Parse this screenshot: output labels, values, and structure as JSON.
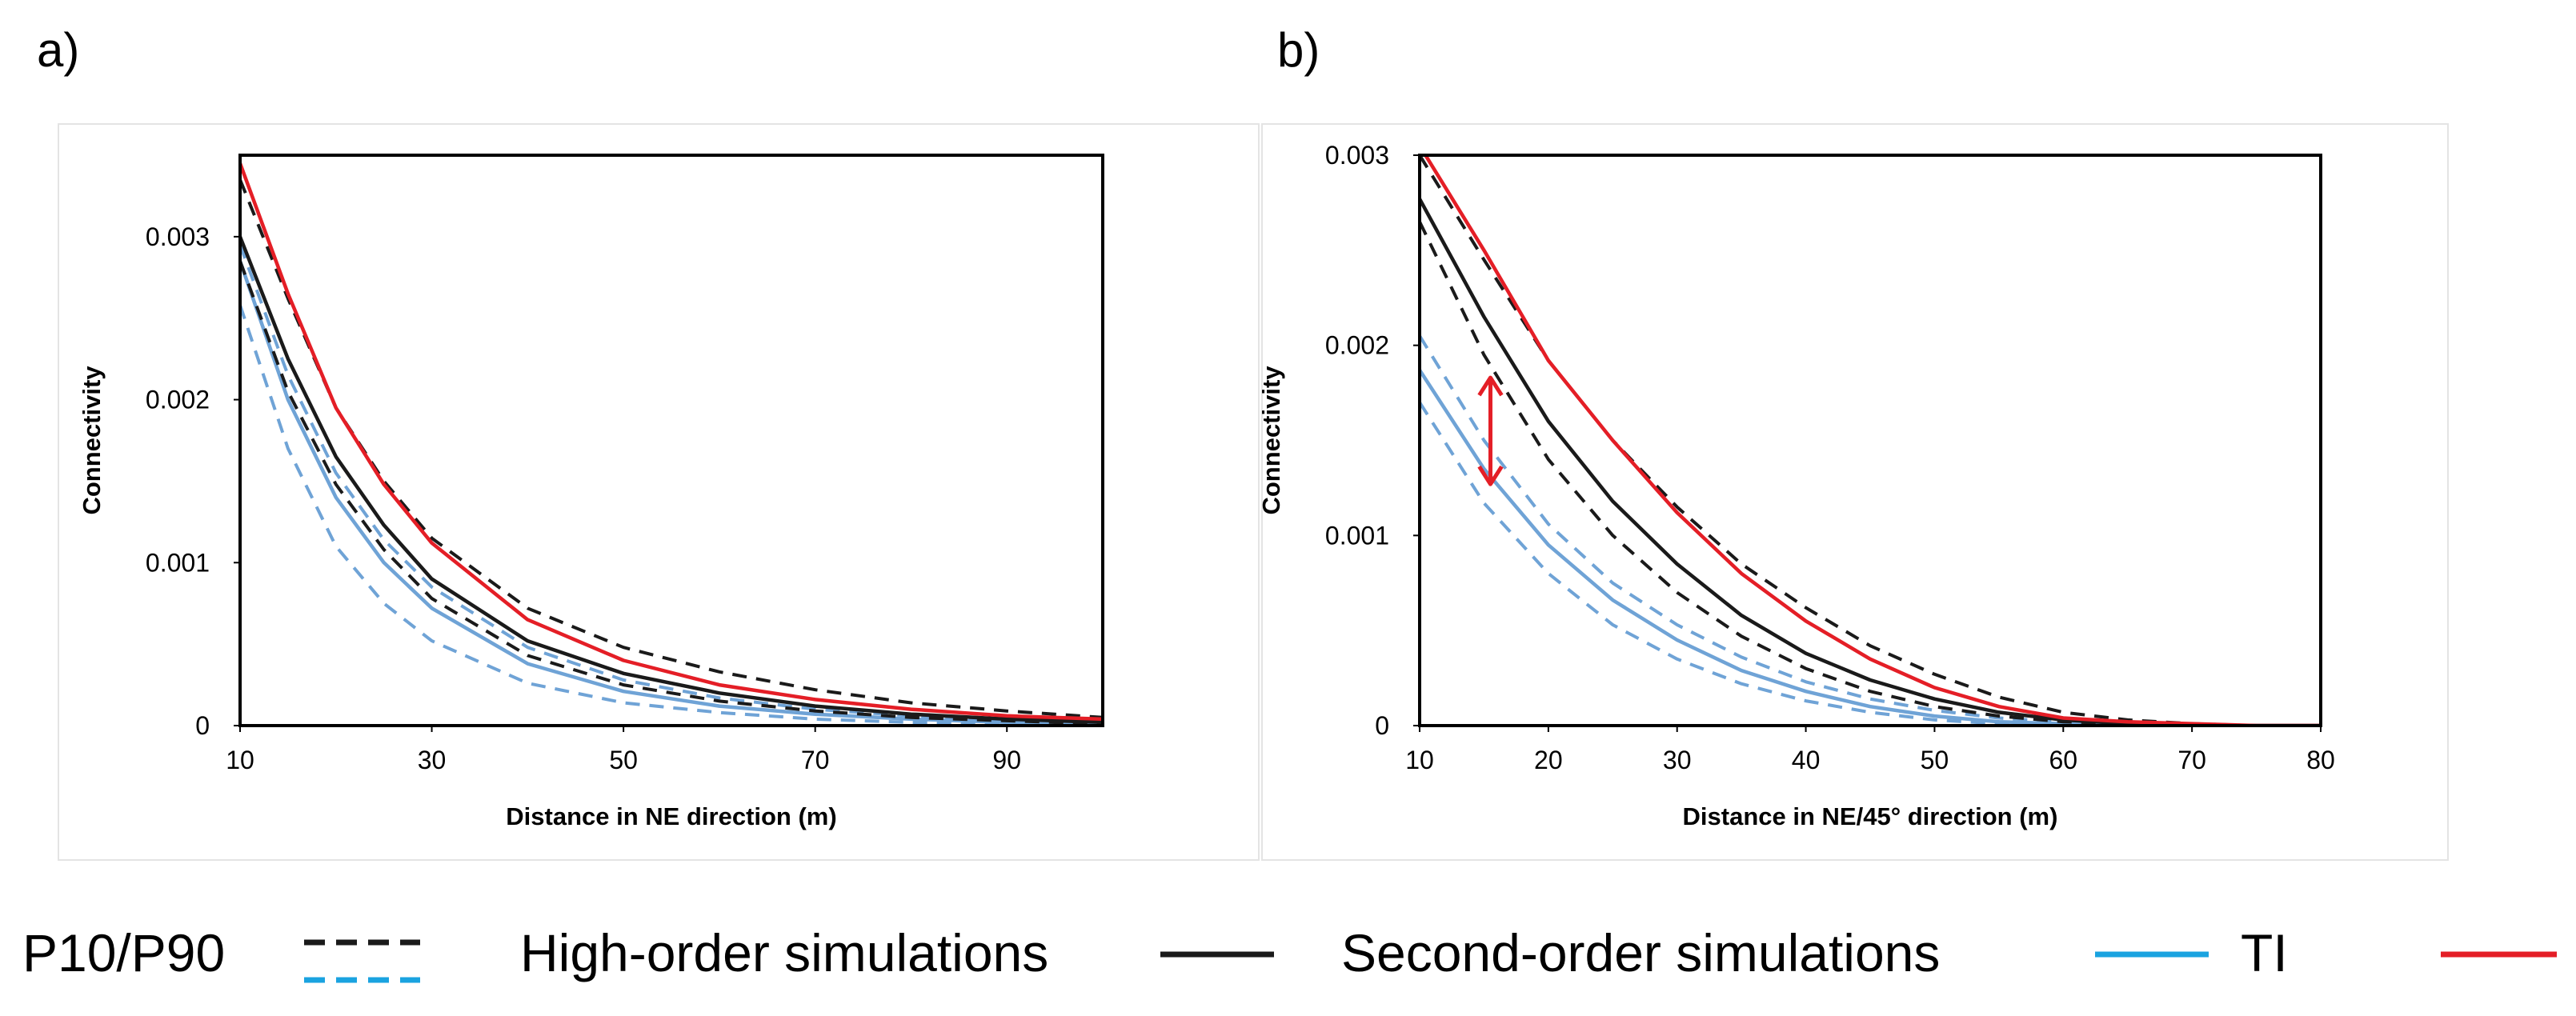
{
  "panels": {
    "a": {
      "label": "a)"
    },
    "b": {
      "label": "b)"
    }
  },
  "legend": {
    "p10_p90": "P10/P90",
    "high_order": "High-order simulations",
    "second_order": "Second-order simulations",
    "ti": "TI"
  },
  "colors": {
    "ti": "#e41e26",
    "high_order": "#1a1a1a",
    "second_order": "#6fa3d6",
    "second_order_legend": "#1aa3e0",
    "arrow": "#e41e26"
  },
  "chart_data": [
    {
      "type": "line",
      "panel": "a",
      "title": "",
      "xlabel": "Distance in NE direction (m)",
      "ylabel": "Connectivity",
      "xlim": [
        10,
        100
      ],
      "ylim": [
        0,
        0.0035
      ],
      "xticks": [
        10,
        30,
        50,
        70,
        90
      ],
      "xtick_labels": [
        "10",
        "30",
        "50",
        "70",
        "90"
      ],
      "yticks": [
        0,
        0.001,
        0.002,
        0.003
      ],
      "ytick_labels": [
        "0",
        "0.001",
        "0.002",
        "0.003"
      ],
      "grid": false,
      "series": [
        {
          "name": "TI",
          "style": "solid",
          "color_key": "ti",
          "x": [
            10,
            15,
            20,
            25,
            30,
            40,
            50,
            60,
            70,
            80,
            90,
            100
          ],
          "y": [
            0.00345,
            0.00265,
            0.00195,
            0.00148,
            0.00112,
            0.00065,
            0.0004,
            0.00025,
            0.00016,
            0.0001,
            6e-05,
            4e-05
          ]
        },
        {
          "name": "High-order simulations",
          "style": "solid",
          "color_key": "high_order",
          "x": [
            10,
            15,
            20,
            25,
            30,
            40,
            50,
            60,
            70,
            80,
            90,
            100
          ],
          "y": [
            0.003,
            0.00225,
            0.00165,
            0.00123,
            0.0009,
            0.00052,
            0.00032,
            0.0002,
            0.00012,
            7e-05,
            4e-05,
            2e-05
          ]
        },
        {
          "name": "High-order P90",
          "style": "dashed",
          "color_key": "high_order",
          "x": [
            10,
            15,
            20,
            25,
            30,
            40,
            50,
            60,
            70,
            80,
            90,
            100
          ],
          "y": [
            0.00335,
            0.00262,
            0.00195,
            0.0015,
            0.00115,
            0.00072,
            0.00048,
            0.00033,
            0.00022,
            0.00014,
            9e-05,
            5e-05
          ]
        },
        {
          "name": "High-order P10",
          "style": "dashed",
          "color_key": "high_order",
          "x": [
            10,
            15,
            20,
            25,
            30,
            40,
            50,
            60,
            70,
            80,
            90,
            100
          ],
          "y": [
            0.00285,
            0.00205,
            0.00148,
            0.00108,
            0.00078,
            0.00043,
            0.00025,
            0.00015,
            9e-05,
            5e-05,
            3e-05,
            1e-05
          ]
        },
        {
          "name": "Second-order simulations",
          "style": "solid",
          "color_key": "second_order",
          "x": [
            10,
            15,
            20,
            25,
            30,
            40,
            50,
            60,
            70,
            80,
            90,
            100
          ],
          "y": [
            0.00285,
            0.002,
            0.0014,
            0.001,
            0.00072,
            0.00038,
            0.00021,
            0.00012,
            7e-05,
            4e-05,
            2e-05,
            1e-05
          ]
        },
        {
          "name": "Second-order P90",
          "style": "dashed",
          "color_key": "second_order",
          "x": [
            10,
            15,
            20,
            25,
            30,
            40,
            50,
            60,
            70,
            80,
            90,
            100
          ],
          "y": [
            0.00295,
            0.00215,
            0.00155,
            0.00114,
            0.00085,
            0.00048,
            0.00028,
            0.00017,
            0.0001,
            6e-05,
            3e-05,
            2e-05
          ]
        },
        {
          "name": "Second-order P10",
          "style": "dashed",
          "color_key": "second_order",
          "x": [
            10,
            15,
            20,
            25,
            30,
            40,
            50,
            60,
            70,
            80,
            90,
            100
          ],
          "y": [
            0.00258,
            0.0017,
            0.0011,
            0.00075,
            0.00052,
            0.00026,
            0.00014,
            8e-05,
            4e-05,
            2e-05,
            1e-05,
            0.0
          ]
        }
      ]
    },
    {
      "type": "line",
      "panel": "b",
      "title": "",
      "xlabel": "Distance in NE/45° direction (m)",
      "ylabel": "Connectivity",
      "xlim": [
        10,
        80
      ],
      "ylim": [
        0,
        0.003
      ],
      "xticks": [
        10,
        20,
        30,
        40,
        50,
        60,
        70,
        80
      ],
      "xtick_labels": [
        "10",
        "20",
        "30",
        "40",
        "50",
        "60",
        "70",
        "80"
      ],
      "yticks": [
        0,
        0.001,
        0.002,
        0.003
      ],
      "ytick_labels": [
        "0",
        "0.001",
        "0.002",
        "0.003"
      ],
      "grid": false,
      "annotation": {
        "type": "double-arrow",
        "x": 15.5,
        "y_from": 0.00183,
        "y_to": 0.00127
      },
      "series": [
        {
          "name": "TI",
          "style": "solid",
          "color_key": "ti",
          "x": [
            10,
            15,
            20,
            25,
            30,
            35,
            40,
            45,
            50,
            55,
            60,
            65,
            70,
            75,
            80
          ],
          "y": [
            0.00305,
            0.0025,
            0.00192,
            0.0015,
            0.00112,
            0.0008,
            0.00055,
            0.00035,
            0.0002,
            0.0001,
            4e-05,
            2e-05,
            1e-05,
            0.0,
            0.0
          ]
        },
        {
          "name": "High-order simulations",
          "style": "solid",
          "color_key": "high_order",
          "x": [
            10,
            15,
            20,
            25,
            30,
            35,
            40,
            45,
            50,
            55,
            60,
            65,
            70,
            75,
            80
          ],
          "y": [
            0.00277,
            0.00215,
            0.0016,
            0.00118,
            0.00085,
            0.00058,
            0.00038,
            0.00024,
            0.00014,
            7e-05,
            3e-05,
            1e-05,
            0.0,
            0.0,
            0.0
          ]
        },
        {
          "name": "High-order P90",
          "style": "dashed",
          "color_key": "high_order",
          "x": [
            10,
            15,
            20,
            25,
            30,
            35,
            40,
            45,
            50,
            55,
            60,
            65,
            70,
            75,
            80
          ],
          "y": [
            0.003,
            0.00245,
            0.00192,
            0.0015,
            0.00115,
            0.00085,
            0.00062,
            0.00042,
            0.00027,
            0.00015,
            7e-05,
            3e-05,
            1e-05,
            0.0,
            0.0
          ]
        },
        {
          "name": "High-order P10",
          "style": "dashed",
          "color_key": "high_order",
          "x": [
            10,
            15,
            20,
            25,
            30,
            35,
            40,
            45,
            50,
            55,
            60,
            65,
            70,
            75,
            80
          ],
          "y": [
            0.00265,
            0.00195,
            0.0014,
            0.001,
            0.0007,
            0.00047,
            0.0003,
            0.00018,
            0.0001,
            5e-05,
            2e-05,
            1e-05,
            0.0,
            0.0,
            0.0
          ]
        },
        {
          "name": "Second-order simulations",
          "style": "solid",
          "color_key": "second_order",
          "x": [
            10,
            15,
            20,
            25,
            30,
            35,
            40,
            45,
            50,
            55,
            60,
            65,
            70,
            75,
            80
          ],
          "y": [
            0.00187,
            0.00135,
            0.00095,
            0.00066,
            0.00045,
            0.00029,
            0.00018,
            0.0001,
            5e-05,
            2e-05,
            1e-05,
            0.0,
            0.0,
            0.0,
            0.0
          ]
        },
        {
          "name": "Second-order P90",
          "style": "dashed",
          "color_key": "second_order",
          "x": [
            10,
            15,
            20,
            25,
            30,
            35,
            40,
            45,
            50,
            55,
            60,
            65,
            70,
            75,
            80
          ],
          "y": [
            0.00205,
            0.0015,
            0.00106,
            0.00075,
            0.00053,
            0.00036,
            0.00023,
            0.00014,
            8e-05,
            4e-05,
            2e-05,
            1e-05,
            0.0,
            0.0,
            0.0
          ]
        },
        {
          "name": "Second-order P10",
          "style": "dashed",
          "color_key": "second_order",
          "x": [
            10,
            15,
            20,
            25,
            30,
            35,
            40,
            45,
            50,
            55,
            60,
            65,
            70,
            75,
            80
          ],
          "y": [
            0.0017,
            0.00117,
            0.0008,
            0.00053,
            0.00035,
            0.00022,
            0.00013,
            7e-05,
            3e-05,
            1e-05,
            0.0,
            0.0,
            0.0,
            0.0,
            0.0
          ]
        }
      ]
    }
  ]
}
